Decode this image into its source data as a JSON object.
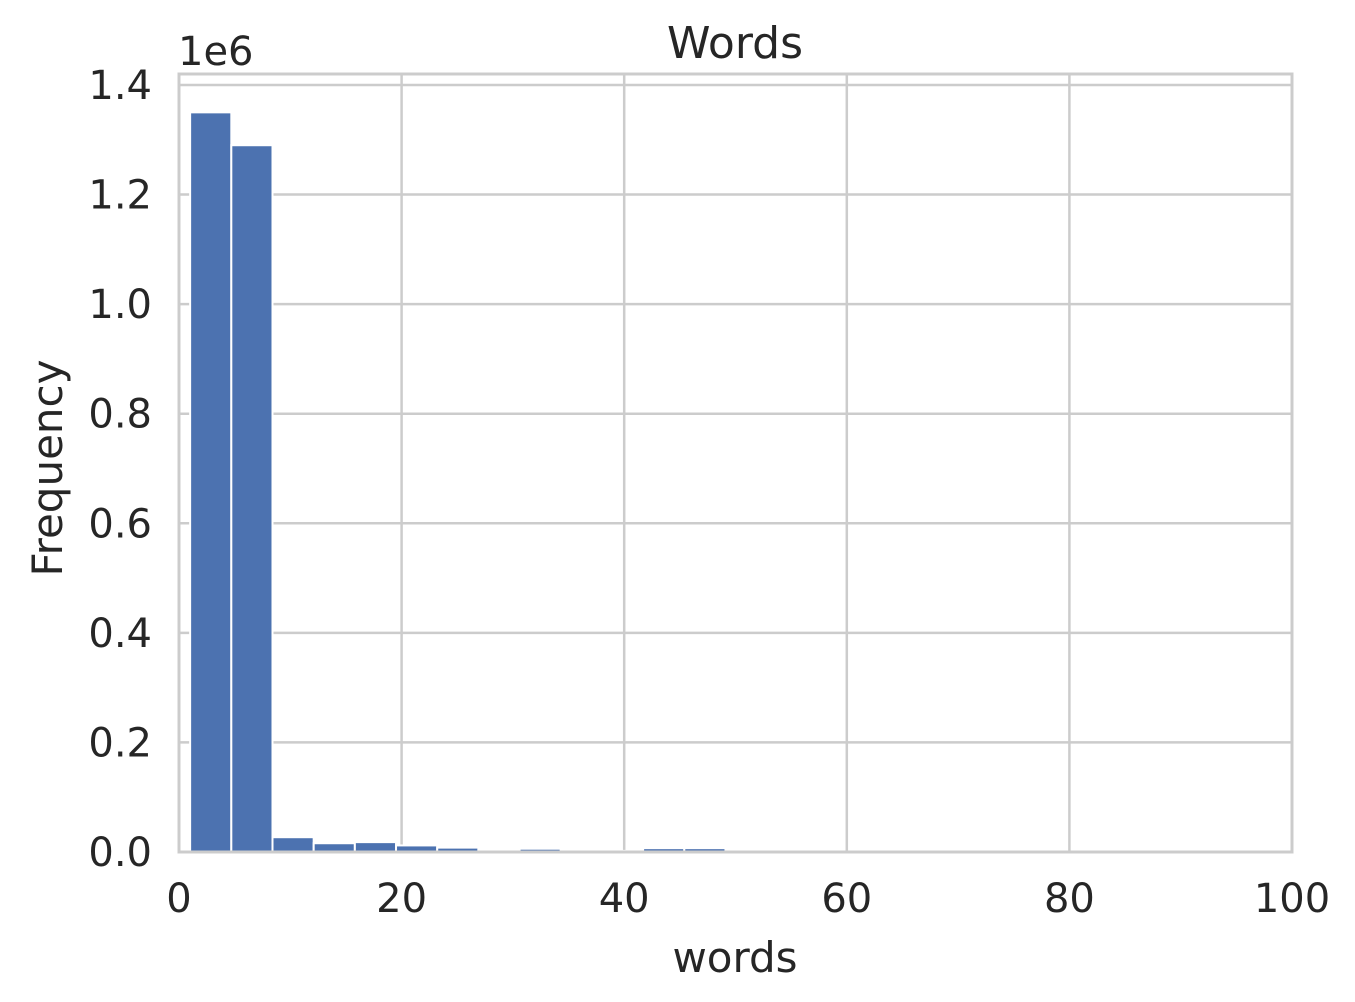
{
  "chart_data": {
    "type": "bar",
    "title": "Words",
    "xlabel": "words",
    "ylabel": "Frequency",
    "y_offset_label": "1e6",
    "y_scale_factor": 1000000,
    "xlim": [
      0,
      100
    ],
    "ylim": [
      0,
      1.42
    ],
    "x_ticks": [
      0,
      20,
      40,
      60,
      80,
      100
    ],
    "x_tick_labels": [
      "0",
      "20",
      "40",
      "60",
      "80",
      "100"
    ],
    "y_ticks": [
      0,
      0.2,
      0.4,
      0.6,
      0.8,
      1.0,
      1.2,
      1.4
    ],
    "y_tick_labels": [
      "0.0",
      "0.2",
      "0.4",
      "0.6",
      "0.8",
      "1.0",
      "1.2",
      "1.4"
    ],
    "grid": true,
    "bar_color": "#4c72b0",
    "bins": [
      {
        "x0": 1.0,
        "x1": 4.7,
        "value": 1.35
      },
      {
        "x0": 4.7,
        "x1": 8.4,
        "value": 1.29
      },
      {
        "x0": 8.4,
        "x1": 12.1,
        "value": 0.027
      },
      {
        "x0": 12.1,
        "x1": 15.8,
        "value": 0.016
      },
      {
        "x0": 15.8,
        "x1": 19.5,
        "value": 0.018
      },
      {
        "x0": 19.5,
        "x1": 23.2,
        "value": 0.012
      },
      {
        "x0": 23.2,
        "x1": 26.9,
        "value": 0.008
      },
      {
        "x0": 26.9,
        "x1": 30.6,
        "value": 0.004
      },
      {
        "x0": 30.6,
        "x1": 34.3,
        "value": 0.006
      },
      {
        "x0": 34.3,
        "x1": 38.0,
        "value": 0.004
      },
      {
        "x0": 38.0,
        "x1": 41.7,
        "value": 0.002
      },
      {
        "x0": 41.7,
        "x1": 45.4,
        "value": 0.007
      },
      {
        "x0": 45.4,
        "x1": 49.1,
        "value": 0.007
      },
      {
        "x0": 49.1,
        "x1": 52.8,
        "value": 0.004
      },
      {
        "x0": 52.8,
        "x1": 56.5,
        "value": 0.001
      },
      {
        "x0": 56.5,
        "x1": 60.2,
        "value": 0.0005
      }
    ]
  }
}
